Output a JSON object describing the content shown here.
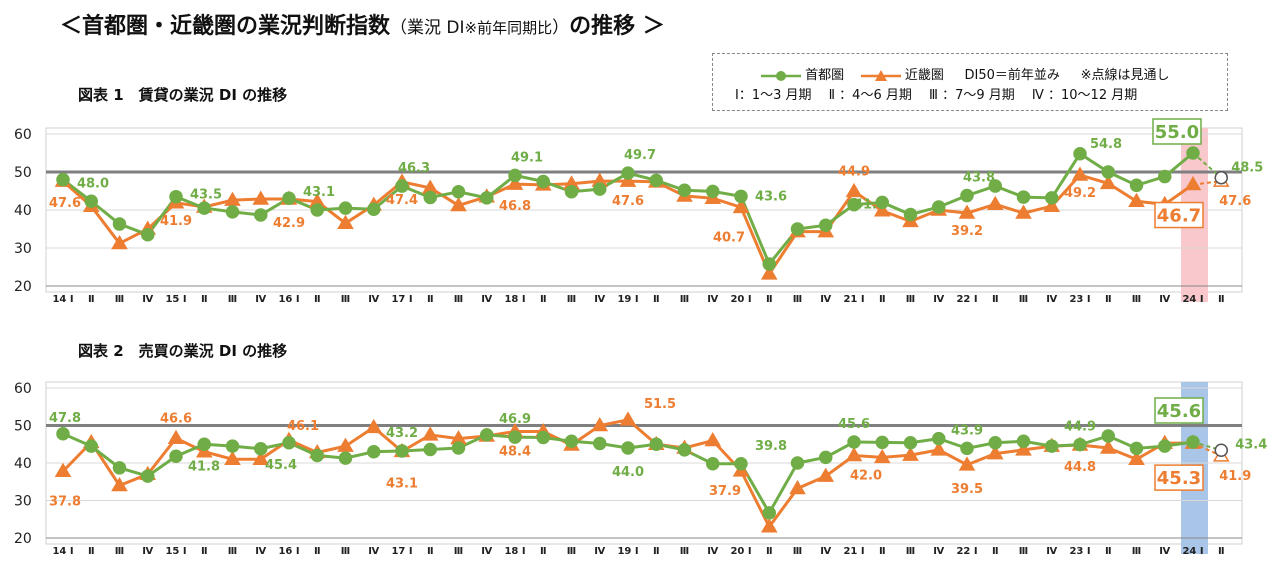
{
  "page": {
    "title_main": "＜首都圏・近畿圏の業況判断指数",
    "title_paren_open": "（業況 DI",
    "title_note": "※前年同期比",
    "title_paren_close": "）",
    "title_end": "の推移 ＞"
  },
  "legend": {
    "series1": "首都圏",
    "series2": "近畿圏",
    "baseline": "DI50＝前年並み",
    "note": "※点線は見通し",
    "quarters": "Ⅰ：1～3 月期　 Ⅱ ：4～6 月期　 Ⅲ ：7～9 月期 　Ⅳ ：10～12 月期"
  },
  "colors": {
    "shutoken": "#70ad47",
    "kinki": "#ed7d31",
    "highlight1": "#f8c8cc",
    "highlight2": "#a9c6e8"
  },
  "chart_data": [
    {
      "type": "line",
      "title": "図表 1　賃貸の業況 DI の推移",
      "categories": [
        "14 Ⅰ",
        "Ⅱ",
        "Ⅲ",
        "Ⅳ",
        "15 Ⅰ",
        "Ⅱ",
        "Ⅲ",
        "Ⅳ",
        "16 Ⅰ",
        "Ⅱ",
        "Ⅲ",
        "Ⅳ",
        "17 Ⅰ",
        "Ⅱ",
        "Ⅲ",
        "Ⅳ",
        "18 Ⅰ",
        "Ⅱ",
        "Ⅲ",
        "Ⅳ",
        "19 Ⅰ",
        "Ⅱ",
        "Ⅲ",
        "Ⅳ",
        "20 Ⅰ",
        "Ⅱ",
        "Ⅲ",
        "Ⅳ",
        "21 Ⅰ",
        "Ⅱ",
        "Ⅲ",
        "Ⅳ",
        "22 Ⅰ",
        "Ⅱ",
        "Ⅲ",
        "Ⅳ",
        "23 Ⅰ",
        "Ⅱ",
        "Ⅲ",
        "Ⅳ",
        "24 Ⅰ",
        "Ⅱ"
      ],
      "ylim": [
        20,
        60
      ],
      "yticks": [
        20,
        30,
        40,
        50,
        60
      ],
      "baseline": 50,
      "forecast_index": 41,
      "highlight_index": 40,
      "series": [
        {
          "name": "首都圏",
          "values": [
            48.0,
            42.3,
            36.3,
            33.5,
            43.5,
            40.5,
            39.5,
            38.7,
            43.1,
            40.0,
            40.5,
            40.2,
            46.3,
            43.3,
            44.8,
            43.2,
            49.1,
            47.5,
            44.8,
            45.5,
            49.7,
            47.8,
            45.2,
            44.9,
            43.6,
            25.8,
            35.0,
            36.0,
            41.4,
            42.0,
            38.8,
            40.8,
            43.8,
            46.3,
            43.4,
            43.2,
            54.8,
            50.0,
            46.5,
            48.8,
            55.0,
            48.5
          ]
        },
        {
          "name": "近畿圏",
          "values": [
            47.6,
            41.0,
            31.2,
            35.0,
            41.9,
            40.8,
            42.6,
            42.9,
            42.9,
            42.2,
            36.5,
            41.3,
            47.4,
            45.8,
            41.2,
            43.5,
            46.8,
            46.6,
            46.9,
            47.6,
            47.6,
            47.4,
            43.7,
            43.1,
            40.7,
            23.2,
            34.3,
            34.3,
            44.9,
            39.8,
            37.0,
            40.0,
            39.2,
            41.5,
            39.2,
            41.0,
            49.2,
            47.0,
            42.3,
            41.5,
            46.7,
            47.6
          ]
        }
      ],
      "labels": [
        {
          "series": 0,
          "i": 0,
          "text": "48.0"
        },
        {
          "series": 0,
          "i": 4,
          "text": "43.5"
        },
        {
          "series": 0,
          "i": 8,
          "text": "43.1"
        },
        {
          "series": 0,
          "i": 12,
          "text": "46.3"
        },
        {
          "series": 0,
          "i": 16,
          "text": "49.1"
        },
        {
          "series": 0,
          "i": 20,
          "text": "49.7"
        },
        {
          "series": 0,
          "i": 24,
          "text": "43.6"
        },
        {
          "series": 0,
          "i": 28,
          "text": "41.4"
        },
        {
          "series": 0,
          "i": 32,
          "text": "43.8"
        },
        {
          "series": 0,
          "i": 36,
          "text": "54.8"
        },
        {
          "series": 0,
          "i": 40,
          "text": "55.0",
          "boxed": true
        },
        {
          "series": 0,
          "i": 41,
          "text": "48.5"
        },
        {
          "series": 1,
          "i": 0,
          "text": "47.6"
        },
        {
          "series": 1,
          "i": 4,
          "text": "41.9"
        },
        {
          "series": 1,
          "i": 8,
          "text": "42.9"
        },
        {
          "series": 1,
          "i": 12,
          "text": "47.4"
        },
        {
          "series": 1,
          "i": 16,
          "text": "46.8"
        },
        {
          "series": 1,
          "i": 20,
          "text": "47.6"
        },
        {
          "series": 1,
          "i": 24,
          "text": "40.7"
        },
        {
          "series": 1,
          "i": 28,
          "text": "44.9"
        },
        {
          "series": 1,
          "i": 32,
          "text": "39.2"
        },
        {
          "series": 1,
          "i": 36,
          "text": "49.2"
        },
        {
          "series": 1,
          "i": 40,
          "text": "46.7",
          "boxed": true
        },
        {
          "series": 1,
          "i": 41,
          "text": "47.6"
        }
      ]
    },
    {
      "type": "line",
      "title": "図表 2　売買の業況 DI の推移",
      "categories": [
        "14 Ⅰ",
        "Ⅱ",
        "Ⅲ",
        "Ⅳ",
        "15 Ⅰ",
        "Ⅱ",
        "Ⅲ",
        "Ⅳ",
        "16 Ⅰ",
        "Ⅱ",
        "Ⅲ",
        "Ⅳ",
        "17 Ⅰ",
        "Ⅱ",
        "Ⅲ",
        "Ⅳ",
        "18 Ⅰ",
        "Ⅱ",
        "Ⅲ",
        "Ⅳ",
        "19 Ⅰ",
        "Ⅱ",
        "Ⅲ",
        "Ⅳ",
        "20 Ⅰ",
        "Ⅱ",
        "Ⅲ",
        "Ⅳ",
        "21 Ⅰ",
        "Ⅱ",
        "Ⅲ",
        "Ⅳ",
        "22 Ⅰ",
        "Ⅱ",
        "Ⅲ",
        "Ⅳ",
        "23 Ⅰ",
        "Ⅱ",
        "Ⅲ",
        "Ⅳ",
        "24 Ⅰ",
        "Ⅱ"
      ],
      "ylim": [
        20,
        60
      ],
      "yticks": [
        20,
        30,
        40,
        50,
        60
      ],
      "baseline": 50,
      "forecast_index": 41,
      "highlight_index": 40,
      "series": [
        {
          "name": "首都圏",
          "values": [
            47.8,
            44.5,
            38.7,
            36.5,
            41.8,
            45.0,
            44.5,
            43.8,
            45.4,
            42.0,
            41.3,
            43.0,
            43.2,
            43.6,
            44.0,
            47.5,
            46.9,
            46.8,
            45.8,
            45.2,
            44.0,
            45.0,
            43.5,
            39.8,
            39.8,
            26.7,
            40.0,
            41.5,
            45.6,
            45.5,
            45.4,
            46.5,
            43.9,
            45.4,
            45.8,
            44.5,
            44.9,
            47.2,
            43.9,
            44.5,
            45.6,
            43.4
          ]
        },
        {
          "name": "近畿圏",
          "values": [
            37.8,
            45.5,
            34.0,
            37.0,
            46.6,
            43.0,
            41.0,
            41.0,
            46.1,
            42.8,
            44.5,
            49.5,
            43.1,
            47.5,
            46.5,
            47.2,
            48.4,
            48.4,
            44.8,
            50.0,
            51.5,
            45.0,
            44.0,
            46.0,
            37.9,
            23.0,
            33.2,
            36.5,
            42.0,
            41.5,
            42.1,
            43.5,
            39.5,
            42.5,
            43.5,
            44.5,
            44.8,
            44.0,
            41.0,
            45.3,
            45.3,
            41.9
          ]
        }
      ],
      "labels": [
        {
          "series": 0,
          "i": 0,
          "text": "47.8"
        },
        {
          "series": 0,
          "i": 4,
          "text": "41.8"
        },
        {
          "series": 0,
          "i": 8,
          "text": "45.4"
        },
        {
          "series": 0,
          "i": 12,
          "text": "43.2"
        },
        {
          "series": 0,
          "i": 16,
          "text": "46.9"
        },
        {
          "series": 0,
          "i": 20,
          "text": "44.0"
        },
        {
          "series": 0,
          "i": 24,
          "text": "39.8"
        },
        {
          "series": 0,
          "i": 28,
          "text": "45.6"
        },
        {
          "series": 0,
          "i": 32,
          "text": "43.9"
        },
        {
          "series": 0,
          "i": 36,
          "text": "44.9"
        },
        {
          "series": 0,
          "i": 40,
          "text": "45.6",
          "boxed": true
        },
        {
          "series": 0,
          "i": 41,
          "text": "43.4"
        },
        {
          "series": 1,
          "i": 0,
          "text": "37.8"
        },
        {
          "series": 1,
          "i": 4,
          "text": "46.6"
        },
        {
          "series": 1,
          "i": 8,
          "text": "46.1"
        },
        {
          "series": 1,
          "i": 12,
          "text": "43.1"
        },
        {
          "series": 1,
          "i": 16,
          "text": "48.4"
        },
        {
          "series": 1,
          "i": 20,
          "text": "51.5"
        },
        {
          "series": 1,
          "i": 24,
          "text": "37.9"
        },
        {
          "series": 1,
          "i": 28,
          "text": "42.0"
        },
        {
          "series": 1,
          "i": 32,
          "text": "39.5"
        },
        {
          "series": 1,
          "i": 36,
          "text": "44.8"
        },
        {
          "series": 1,
          "i": 40,
          "text": "45.3",
          "boxed": true
        },
        {
          "series": 1,
          "i": 41,
          "text": "41.9"
        }
      ]
    }
  ]
}
